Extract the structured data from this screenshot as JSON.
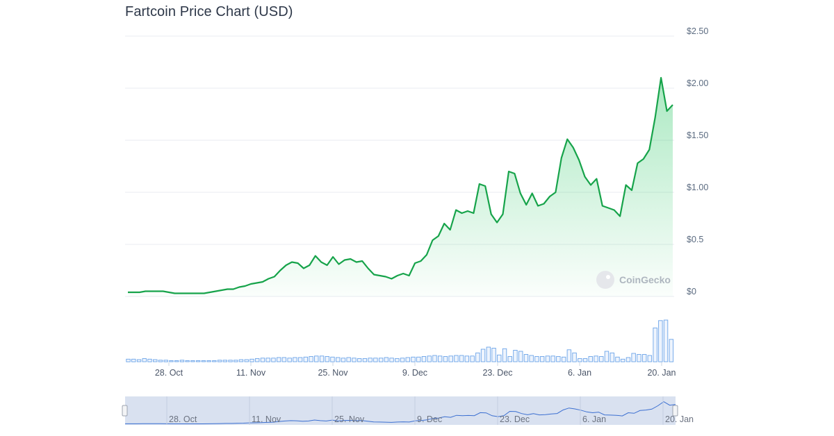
{
  "title": "Fartcoin Price Chart (USD)",
  "watermark": "CoinGecko",
  "chart_data": {
    "type": "line",
    "title": "Fartcoin Price Chart (USD)",
    "xlabel": "",
    "ylabel": "",
    "ylim": [
      0,
      2.5
    ],
    "y_tick_labels": [
      "$0",
      "$0.5",
      "$1.00",
      "$1.50",
      "$2.00",
      "$2.50"
    ],
    "y_ticks": [
      0,
      0.5,
      1.0,
      1.5,
      2.0,
      2.5
    ],
    "x_tick_labels": [
      "28. Oct",
      "11. Nov",
      "25. Nov",
      "9. Dec",
      "23. Dec",
      "6. Jan",
      "20. Jan"
    ],
    "grid": true,
    "legend": "none",
    "colors": {
      "line": "#16a34a",
      "fill": "#22c55e",
      "volume": "#6aa3e8",
      "navigator_fill": "#d3dcef"
    },
    "series": [
      {
        "values": [
          0.04,
          0.04,
          0.04,
          0.05,
          0.05,
          0.05,
          0.05,
          0.04,
          0.03,
          0.03,
          0.03,
          0.03,
          0.03,
          0.03,
          0.04,
          0.05,
          0.06,
          0.07,
          0.07,
          0.09,
          0.1,
          0.12,
          0.13,
          0.14,
          0.17,
          0.19,
          0.25,
          0.3,
          0.33,
          0.32,
          0.27,
          0.3,
          0.39,
          0.33,
          0.3,
          0.38,
          0.31,
          0.35,
          0.36,
          0.33,
          0.34,
          0.27,
          0.21,
          0.2,
          0.19,
          0.17,
          0.2,
          0.22,
          0.2,
          0.32,
          0.34,
          0.4,
          0.54,
          0.58,
          0.7,
          0.64,
          0.83,
          0.8,
          0.82,
          0.8,
          1.08,
          1.06,
          0.79,
          0.71,
          0.79,
          1.2,
          1.18,
          0.99,
          0.88,
          0.99,
          0.87,
          0.89,
          0.96,
          1.0,
          1.33,
          1.51,
          1.43,
          1.31,
          1.15,
          1.07,
          1.13,
          0.87,
          0.85,
          0.83,
          0.77,
          1.07,
          1.02,
          1.28,
          1.32,
          1.41,
          1.72,
          2.1,
          1.78,
          1.84
        ]
      }
    ],
    "volume": [
      0.05,
      0.05,
      0.04,
      0.06,
      0.05,
      0.04,
      0.03,
      0.03,
      0.02,
      0.02,
      0.03,
      0.02,
      0.02,
      0.02,
      0.02,
      0.02,
      0.02,
      0.03,
      0.03,
      0.03,
      0.03,
      0.04,
      0.04,
      0.05,
      0.06,
      0.07,
      0.07,
      0.07,
      0.08,
      0.08,
      0.07,
      0.08,
      0.08,
      0.09,
      0.1,
      0.11,
      0.11,
      0.1,
      0.09,
      0.08,
      0.07,
      0.08,
      0.07,
      0.06,
      0.06,
      0.07,
      0.07,
      0.07,
      0.08,
      0.07,
      0.06,
      0.07,
      0.08,
      0.09,
      0.09,
      0.1,
      0.11,
      0.12,
      0.11,
      0.1,
      0.11,
      0.12,
      0.12,
      0.11,
      0.11,
      0.17,
      0.24,
      0.28,
      0.26,
      0.13,
      0.25,
      0.1,
      0.22,
      0.2,
      0.14,
      0.12,
      0.1,
      0.1,
      0.11,
      0.11,
      0.1,
      0.09,
      0.23,
      0.17,
      0.06,
      0.06,
      0.1,
      0.11,
      0.1,
      0.2,
      0.17,
      0.09,
      0.05,
      0.08,
      0.16,
      0.14,
      0.14,
      0.12,
      0.65,
      0.79,
      0.8,
      0.43
    ]
  }
}
